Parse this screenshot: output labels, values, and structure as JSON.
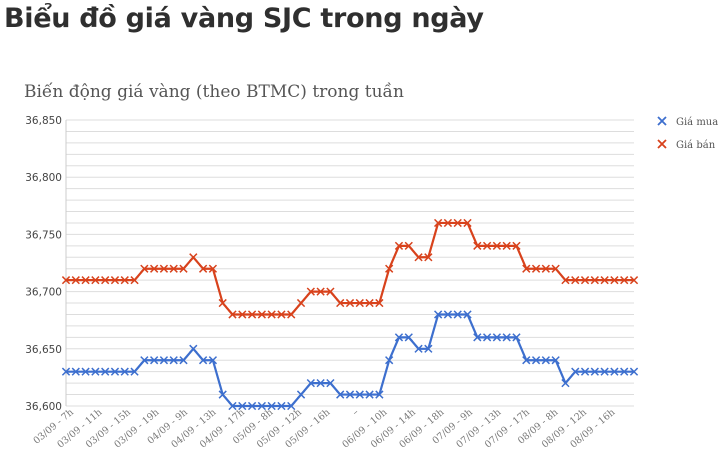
{
  "page": {
    "heading": "Biểu đồ giá vàng SJC trong ngày"
  },
  "colors": {
    "buy": "#3d6fce",
    "sell": "#d8421c",
    "grid": "#dddddd"
  },
  "chart_data": {
    "type": "line",
    "title": "Biến động giá vàng (theo BTMC) trong tuần",
    "xlabel": "",
    "ylabel": "",
    "ylim": [
      36600,
      36850
    ],
    "yticks": [
      36600,
      36650,
      36700,
      36750,
      36800,
      36850
    ],
    "ytick_labels": [
      "36,600",
      "36,650",
      "36,700",
      "36,750",
      "36,800",
      "36,850"
    ],
    "grid": true,
    "legend_position": "right",
    "x_tick_labels": [
      "03/09 - 7h",
      "03/09 - 11h",
      "03/09 - 15h",
      "03/09 - 19h",
      "04/09 - 9h",
      "04/09 - 13h",
      "04/09 - 17h",
      "05/09 - 8h",
      "05/09 - 12h",
      "05/09 - 16h",
      "–",
      "06/09 - 10h",
      "06/09 - 14h",
      "06/09 - 18h",
      "07/09 - 9h",
      "07/09 - 13h",
      "07/09 - 17h",
      "08/09 - 8h",
      "08/09 - 12h",
      "08/09 - 16h"
    ],
    "series": [
      {
        "name": "Giá mua",
        "values": [
          36630,
          36630,
          36630,
          36630,
          36630,
          36630,
          36630,
          36630,
          36640,
          36640,
          36640,
          36640,
          36640,
          36650,
          36640,
          36640,
          36610,
          36600,
          36600,
          36600,
          36600,
          36600,
          36600,
          36600,
          36610,
          36620,
          36620,
          36620,
          36610,
          36610,
          36610,
          36610,
          36610,
          36640,
          36660,
          36660,
          36650,
          36650,
          36680,
          36680,
          36680,
          36680,
          36660,
          36660,
          36660,
          36660,
          36660,
          36640,
          36640,
          36640,
          36640,
          36620,
          36630,
          36630,
          36630,
          36630,
          36630,
          36630,
          36630
        ]
      },
      {
        "name": "Giá bán",
        "values": [
          36710,
          36710,
          36710,
          36710,
          36710,
          36710,
          36710,
          36710,
          36720,
          36720,
          36720,
          36720,
          36720,
          36730,
          36720,
          36720,
          36690,
          36680,
          36680,
          36680,
          36680,
          36680,
          36680,
          36680,
          36690,
          36700,
          36700,
          36700,
          36690,
          36690,
          36690,
          36690,
          36690,
          36720,
          36740,
          36740,
          36730,
          36730,
          36760,
          36760,
          36760,
          36760,
          36740,
          36740,
          36740,
          36740,
          36740,
          36720,
          36720,
          36720,
          36720,
          36710,
          36710,
          36710,
          36710,
          36710,
          36710,
          36710,
          36710
        ]
      }
    ]
  }
}
